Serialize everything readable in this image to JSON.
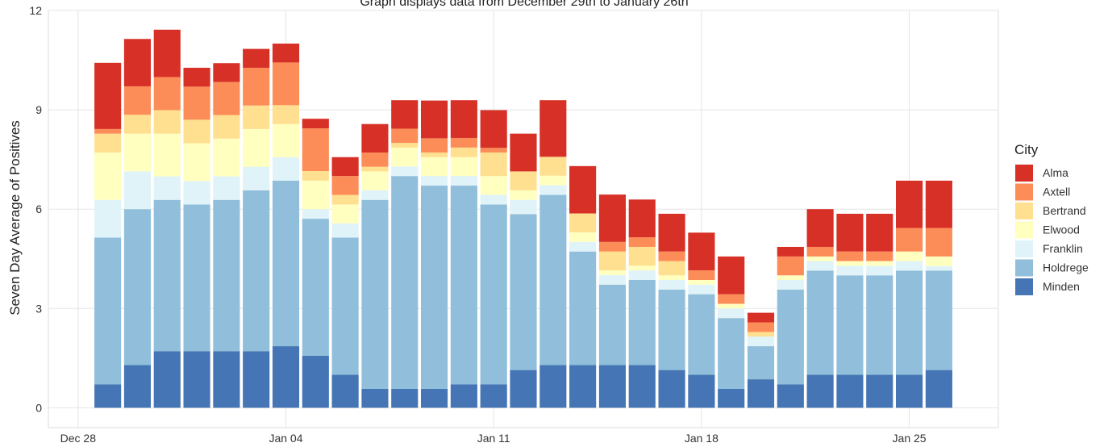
{
  "chart_data": {
    "type": "stacked_bar",
    "title": "Graph displays data from December 29th to January 26th",
    "y_label": "Seven Day Average of Positives",
    "legend_title": "City",
    "legend": "right",
    "grid": true,
    "x": [
      "Dec 29",
      "Dec 30",
      "Dec 31",
      "Jan 01",
      "Jan 02",
      "Jan 03",
      "Jan 04",
      "Jan 05",
      "Jan 06",
      "Jan 07",
      "Jan 08",
      "Jan 09",
      "Jan 10",
      "Jan 11",
      "Jan 12",
      "Jan 13",
      "Jan 14",
      "Jan 15",
      "Jan 16",
      "Jan 17",
      "Jan 18",
      "Jan 19",
      "Jan 20",
      "Jan 21",
      "Jan 22",
      "Jan 23",
      "Jan 24",
      "Jan 25",
      "Jan 26"
    ],
    "xlim": [
      "Dec 27",
      "Jan 28"
    ],
    "xticks": [
      "Dec 28",
      "Jan 04",
      "Jan 11",
      "Jan 18",
      "Jan 25"
    ],
    "ylim": [
      -0.6,
      12
    ],
    "yticks": [
      0,
      3,
      6,
      9,
      12
    ],
    "series": [
      {
        "name": "Minden",
        "color": "#4575b4",
        "values": [
          0.71,
          1.29,
          1.71,
          1.71,
          1.71,
          1.71,
          1.86,
          1.57,
          1.0,
          0.57,
          0.57,
          0.57,
          0.71,
          0.71,
          1.14,
          1.29,
          1.29,
          1.29,
          1.29,
          1.14,
          1.0,
          0.57,
          0.86,
          0.71,
          1.0,
          1.0,
          1.0,
          1.0,
          1.14
        ]
      },
      {
        "name": "Holdrege",
        "color": "#91bfdb",
        "values": [
          4.43,
          4.71,
          4.57,
          4.43,
          4.57,
          4.86,
          5.0,
          4.14,
          4.14,
          5.71,
          6.43,
          6.14,
          6.0,
          5.43,
          4.71,
          5.14,
          3.43,
          2.43,
          2.57,
          2.43,
          2.43,
          2.14,
          1.0,
          2.86,
          3.14,
          3.0,
          3.0,
          3.14,
          3.0
        ]
      },
      {
        "name": "Franklin",
        "color": "#e0f3f8",
        "values": [
          1.14,
          1.14,
          0.71,
          0.71,
          0.71,
          0.71,
          0.71,
          0.29,
          0.43,
          0.29,
          0.29,
          0.29,
          0.29,
          0.29,
          0.43,
          0.29,
          0.29,
          0.29,
          0.29,
          0.29,
          0.29,
          0.29,
          0.29,
          0.29,
          0.29,
          0.29,
          0.29,
          0.29,
          0.14
        ]
      },
      {
        "name": "Elwood",
        "color": "#ffffbf",
        "values": [
          1.43,
          1.14,
          1.29,
          1.14,
          1.14,
          1.14,
          1.0,
          0.86,
          0.57,
          0.57,
          0.57,
          0.57,
          0.57,
          0.57,
          0.29,
          0.29,
          0.29,
          0.14,
          0.14,
          0.14,
          0.14,
          0.14,
          0.0,
          0.14,
          0.14,
          0.14,
          0.14,
          0.29,
          0.29
        ]
      },
      {
        "name": "Bertrand",
        "color": "#fee090",
        "values": [
          0.57,
          0.57,
          0.71,
          0.71,
          0.71,
          0.71,
          0.57,
          0.29,
          0.29,
          0.14,
          0.14,
          0.14,
          0.29,
          0.71,
          0.57,
          0.57,
          0.57,
          0.57,
          0.57,
          0.43,
          0.0,
          0.0,
          0.14,
          0.0,
          0.0,
          0.0,
          0.0,
          0.0,
          0.0
        ]
      },
      {
        "name": "Axtell",
        "color": "#fc8d59",
        "values": [
          0.14,
          0.86,
          1.0,
          1.0,
          1.0,
          1.14,
          1.29,
          1.29,
          0.57,
          0.43,
          0.43,
          0.43,
          0.29,
          0.14,
          0.0,
          0.0,
          0.0,
          0.29,
          0.29,
          0.29,
          0.29,
          0.29,
          0.29,
          0.57,
          0.29,
          0.29,
          0.29,
          0.71,
          0.86
        ]
      },
      {
        "name": "Alma",
        "color": "#d73027",
        "values": [
          2.0,
          1.43,
          1.43,
          0.57,
          0.57,
          0.57,
          0.57,
          0.29,
          0.57,
          0.86,
          0.86,
          1.14,
          1.14,
          1.14,
          1.14,
          1.71,
          1.43,
          1.43,
          1.14,
          1.14,
          1.14,
          1.14,
          0.29,
          0.29,
          1.14,
          1.14,
          1.14,
          1.43,
          1.43
        ]
      }
    ]
  }
}
